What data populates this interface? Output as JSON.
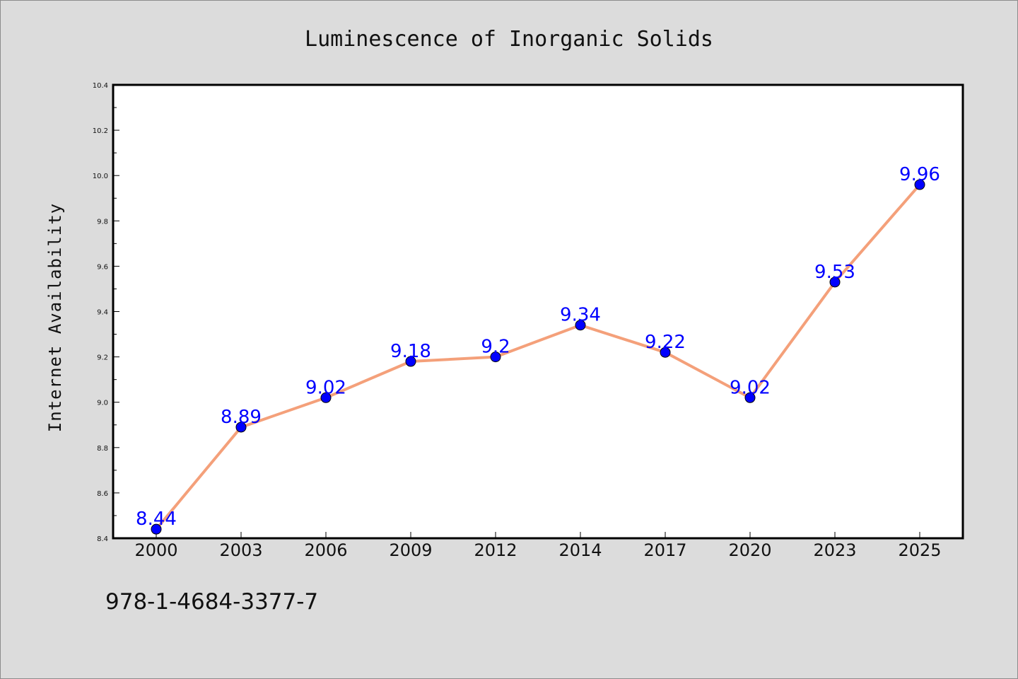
{
  "chart_data": {
    "type": "line",
    "title": "Luminescence of Inorganic Solids",
    "xlabel": "",
    "ylabel": "Internet Availability",
    "categories": [
      "2000",
      "2003",
      "2006",
      "2009",
      "2012",
      "2014",
      "2017",
      "2020",
      "2023",
      "2025"
    ],
    "series": [
      {
        "values": [
          8.44,
          8.89,
          9.02,
          9.18,
          9.2,
          9.34,
          9.22,
          9.02,
          9.53,
          9.96
        ],
        "data_labels": [
          "8.44",
          "8.89",
          "9.02",
          "9.18",
          "9.2",
          "9.34",
          "9.22",
          "9.02",
          "9.53",
          "9.96"
        ],
        "line_color": "#f4a07a",
        "marker_color": "#0000ff"
      }
    ],
    "ylim": [
      8.4,
      10.4
    ],
    "y_ticks": [
      "8.4",
      "8.6",
      "8.8",
      "9.0",
      "9.2",
      "9.4",
      "9.6",
      "9.8",
      "10.0",
      "10.2",
      "10.4"
    ],
    "grid": false,
    "legend": "none",
    "label_color": "#0000ff"
  },
  "footer": {
    "code": "978-1-4684-3377-7"
  }
}
